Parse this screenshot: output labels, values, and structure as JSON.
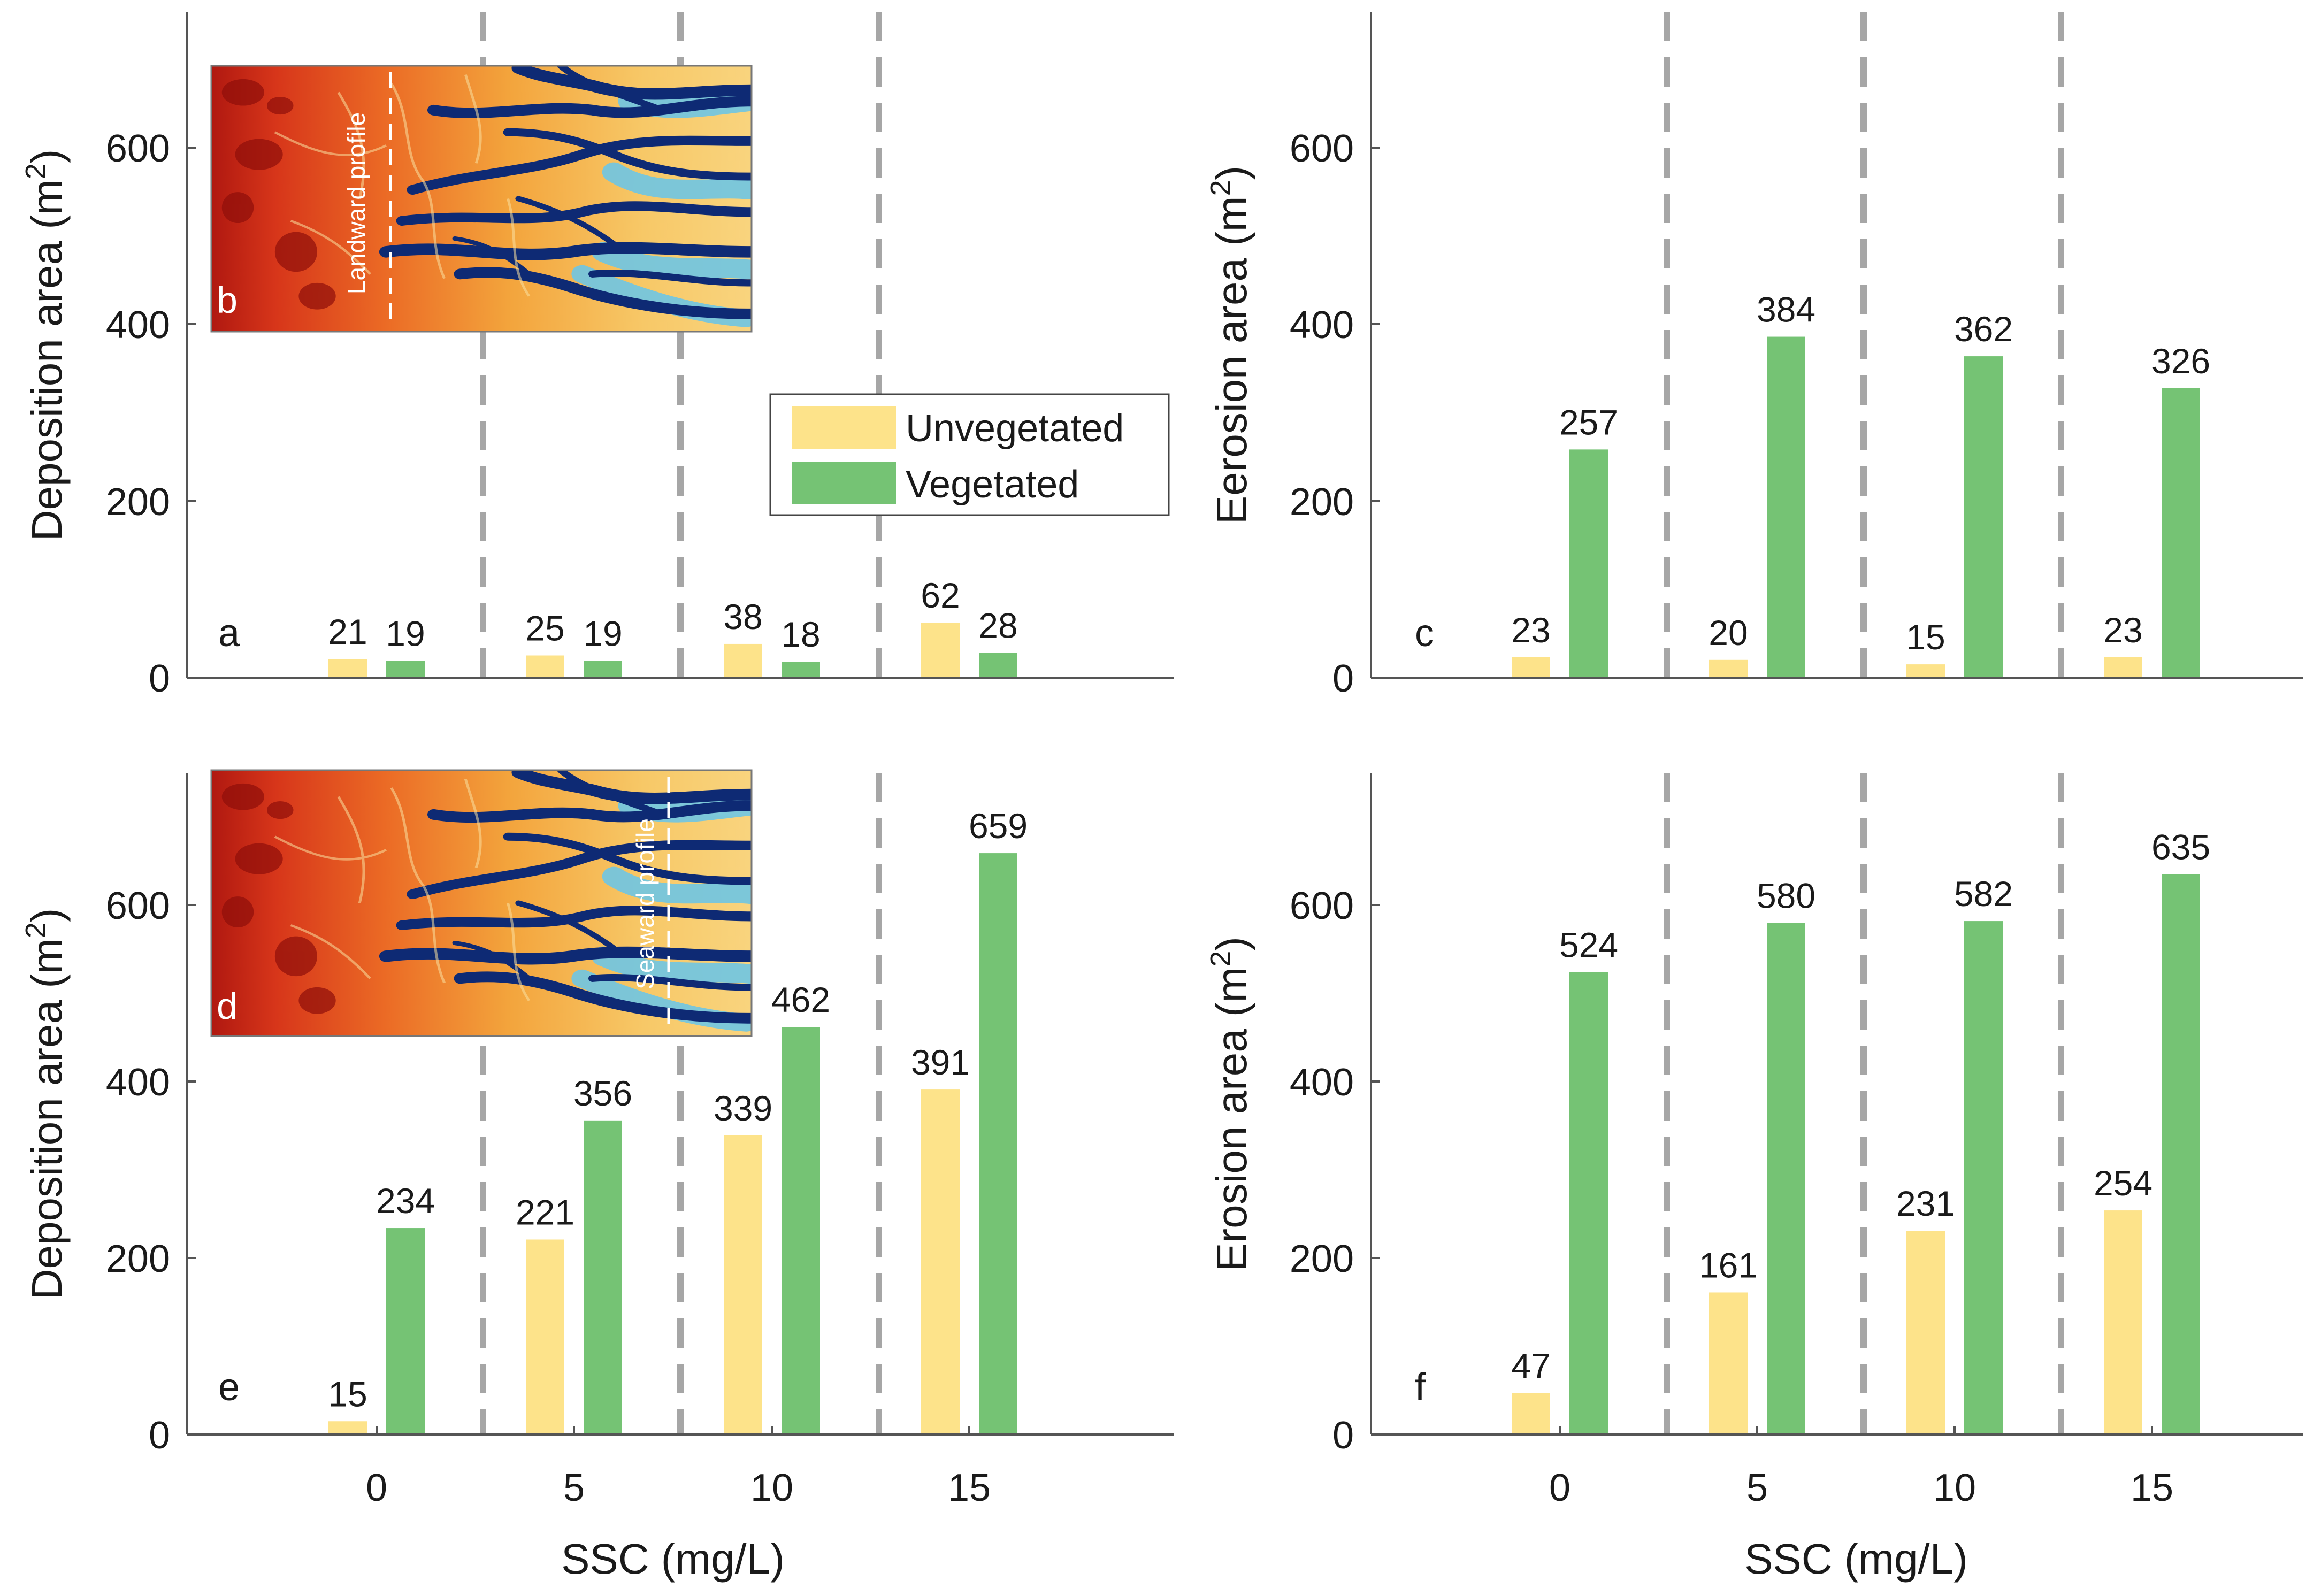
{
  "colors": {
    "unvegetated": "#FDE38A",
    "vegetated": "#75C374",
    "axis": "#555555",
    "divider": "#A6A6A6"
  },
  "legend": {
    "unvegetated": "Unvegetated",
    "vegetated": "Vegetated"
  },
  "xlabel": "SSC (mg/L)",
  "x_ticks": [
    "0",
    "5",
    "10",
    "15"
  ],
  "inset_b": {
    "letter": "b",
    "profile_label": "Landward profile"
  },
  "inset_d": {
    "letter": "d",
    "profile_label": "Seaward profile"
  },
  "chart_data": [
    {
      "id": "a",
      "type": "bar",
      "letter": "a",
      "ylabel": "Deposition area (m2)",
      "ylabel_main": "Deposition area (m",
      "ylabel_sup": "2",
      "ylabel_close": ")",
      "categories": [
        "0",
        "5",
        "10",
        "15"
      ],
      "ylim": [
        0,
        750
      ],
      "yticks": [
        "0",
        "200",
        "400",
        "600"
      ],
      "series": [
        {
          "name": "Unvegetated",
          "values": [
            21,
            25,
            38,
            62
          ],
          "labels": [
            "21",
            "25",
            "38",
            "62"
          ]
        },
        {
          "name": "Vegetated",
          "values": [
            19,
            19,
            18,
            28
          ],
          "labels": [
            "19",
            "19",
            "18",
            "28"
          ]
        }
      ]
    },
    {
      "id": "c",
      "type": "bar",
      "letter": "c",
      "ylabel": "Eerosion area (m2)",
      "ylabel_main": "Eerosion area (m",
      "ylabel_sup": "2",
      "ylabel_close": ")",
      "categories": [
        "0",
        "5",
        "10",
        "15"
      ],
      "ylim": [
        0,
        750
      ],
      "yticks": [
        "0",
        "200",
        "400",
        "600"
      ],
      "series": [
        {
          "name": "Unvegetated",
          "values": [
            23,
            20,
            15,
            23
          ],
          "labels": [
            "23",
            "20",
            "15",
            "23"
          ]
        },
        {
          "name": "Vegetated",
          "values": [
            257,
            384,
            362,
            326
          ],
          "labels": [
            "257",
            "384",
            "362",
            "326"
          ]
        }
      ]
    },
    {
      "id": "e",
      "type": "bar",
      "letter": "e",
      "ylabel": "Deposition area (m2)",
      "ylabel_main": "Deposition area (m",
      "ylabel_sup": "2",
      "ylabel_close": ")",
      "xlabel": "SSC (mg/L)",
      "categories": [
        "0",
        "5",
        "10",
        "15"
      ],
      "ylim": [
        0,
        750
      ],
      "yticks": [
        "0",
        "200",
        "400",
        "600"
      ],
      "series": [
        {
          "name": "Unvegetated",
          "values": [
            15,
            221,
            339,
            391
          ],
          "labels": [
            "15",
            "221",
            "339",
            "391"
          ]
        },
        {
          "name": "Vegetated",
          "values": [
            234,
            356,
            462,
            659
          ],
          "labels": [
            "234",
            "356",
            "462",
            "659"
          ]
        }
      ]
    },
    {
      "id": "f",
      "type": "bar",
      "letter": "f",
      "ylabel": "Erosion area (m2)",
      "ylabel_main": "Erosion area (m",
      "ylabel_sup": "2",
      "ylabel_close": ")",
      "xlabel": "SSC (mg/L)",
      "categories": [
        "0",
        "5",
        "10",
        "15"
      ],
      "ylim": [
        0,
        750
      ],
      "yticks": [
        "0",
        "200",
        "400",
        "600"
      ],
      "series": [
        {
          "name": "Unvegetated",
          "values": [
            47,
            161,
            231,
            254
          ],
          "labels": [
            "47",
            "161",
            "231",
            "254"
          ]
        },
        {
          "name": "Vegetated",
          "values": [
            524,
            580,
            582,
            635
          ],
          "labels": [
            "524",
            "580",
            "582",
            "635"
          ]
        }
      ]
    }
  ]
}
